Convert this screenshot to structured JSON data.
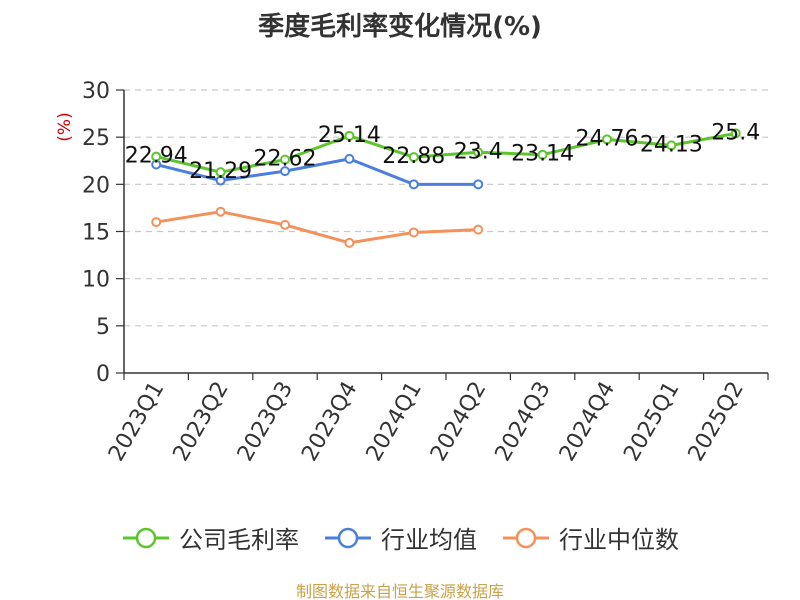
{
  "page": {
    "source": "制图数据来自恒生聚源数据库"
  },
  "chart_data": {
    "type": "line",
    "title": "季度毛利率变化情况(%)",
    "ylabel": "(%)",
    "ylabel_color": "#cc0000",
    "ylim": [
      0,
      30
    ],
    "yticks": [
      0,
      5,
      10,
      15,
      20,
      25,
      30
    ],
    "categories": [
      "2023Q1",
      "2023Q2",
      "2023Q3",
      "2023Q4",
      "2024Q1",
      "2024Q2",
      "2024Q3",
      "2024Q4",
      "2025Q1",
      "2025Q2"
    ],
    "grid": true,
    "legend_position": "bottom",
    "series": [
      {
        "name": "公司毛利率",
        "color": "#5cc52c",
        "values": [
          22.94,
          21.29,
          22.62,
          25.14,
          22.88,
          23.4,
          23.14,
          24.76,
          24.13,
          25.4
        ],
        "labels": [
          "22.94",
          "21.29",
          "22.62",
          "25.14",
          "22.88",
          "23.4",
          "23.14",
          "24.76",
          "24.13",
          "25.4"
        ]
      },
      {
        "name": "行业均值",
        "color": "#4a7fdc",
        "values": [
          22.1,
          20.4,
          21.4,
          22.7,
          20.0,
          20.0,
          null,
          null,
          null,
          null
        ]
      },
      {
        "name": "行业中位数",
        "color": "#f4915a",
        "values": [
          16.0,
          17.1,
          15.7,
          13.8,
          14.9,
          15.2,
          null,
          null,
          null,
          null
        ]
      }
    ]
  }
}
